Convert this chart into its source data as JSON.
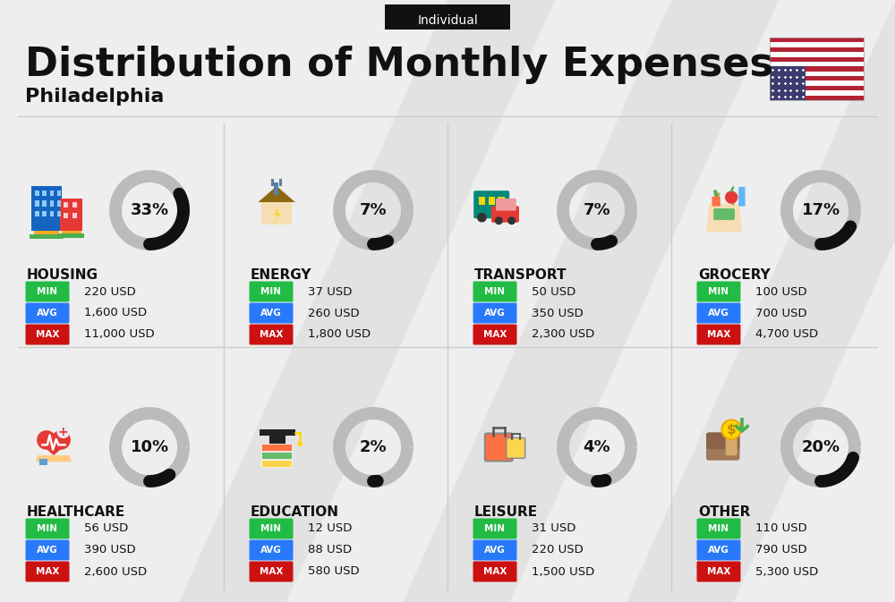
{
  "title": "Distribution of Monthly Expenses",
  "subtitle": "Philadelphia",
  "tag": "Individual",
  "bg_color": "#eeeeee",
  "categories": [
    {
      "name": "HOUSING",
      "pct": 33,
      "min_val": "220 USD",
      "avg_val": "1,600 USD",
      "max_val": "11,000 USD",
      "row": 0,
      "col": 0
    },
    {
      "name": "ENERGY",
      "pct": 7,
      "min_val": "37 USD",
      "avg_val": "260 USD",
      "max_val": "1,800 USD",
      "row": 0,
      "col": 1
    },
    {
      "name": "TRANSPORT",
      "pct": 7,
      "min_val": "50 USD",
      "avg_val": "350 USD",
      "max_val": "2,300 USD",
      "row": 0,
      "col": 2
    },
    {
      "name": "GROCERY",
      "pct": 17,
      "min_val": "100 USD",
      "avg_val": "700 USD",
      "max_val": "4,700 USD",
      "row": 0,
      "col": 3
    },
    {
      "name": "HEALTHCARE",
      "pct": 10,
      "min_val": "56 USD",
      "avg_val": "390 USD",
      "max_val": "2,600 USD",
      "row": 1,
      "col": 0
    },
    {
      "name": "EDUCATION",
      "pct": 2,
      "min_val": "12 USD",
      "avg_val": "88 USD",
      "max_val": "580 USD",
      "row": 1,
      "col": 1
    },
    {
      "name": "LEISURE",
      "pct": 4,
      "min_val": "31 USD",
      "avg_val": "220 USD",
      "max_val": "1,500 USD",
      "row": 1,
      "col": 2
    },
    {
      "name": "OTHER",
      "pct": 20,
      "min_val": "110 USD",
      "avg_val": "790 USD",
      "max_val": "5,300 USD",
      "row": 1,
      "col": 3
    }
  ],
  "min_color": "#22bb44",
  "avg_color": "#2979ff",
  "max_color": "#cc1111",
  "donut_bg_color": "#bbbbbb",
  "donut_fill_color": "#111111",
  "text_color": "#111111",
  "divider_color": "#cccccc"
}
